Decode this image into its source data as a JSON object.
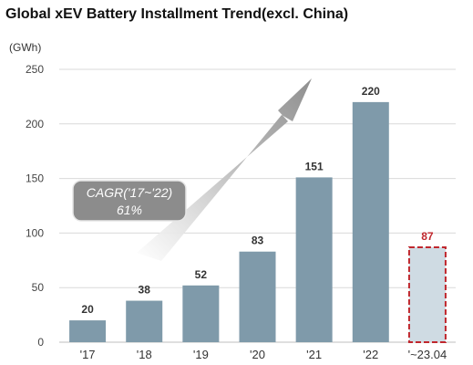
{
  "title": "Global xEV Battery Installment Trend(excl. China)",
  "unit_label": "(GWh)",
  "annotation": {
    "line1": "CAGR('17~'22)",
    "line2": "61%"
  },
  "colors": {
    "bar": "#7f9aaa",
    "highlight_fill": "#cfdbe3",
    "highlight_border": "#c0272d",
    "highlight_label": "#c0272d",
    "grid": "#d9d9d9",
    "cagr_box": "#8c8c8c"
  },
  "chart_data": {
    "type": "bar",
    "categories": [
      "'17",
      "'18",
      "'19",
      "'20",
      "'21",
      "'22",
      "'~23.04"
    ],
    "values": [
      20,
      38,
      52,
      83,
      151,
      220,
      87
    ],
    "highlighted_category": "'~23.04",
    "ylim": [
      0,
      250
    ],
    "yticks": [
      0,
      50,
      100,
      150,
      200,
      250
    ],
    "grid": true,
    "title": "Global xEV Battery Installment Trend(excl. China)",
    "ylabel": "(GWh)",
    "xlabel": ""
  }
}
